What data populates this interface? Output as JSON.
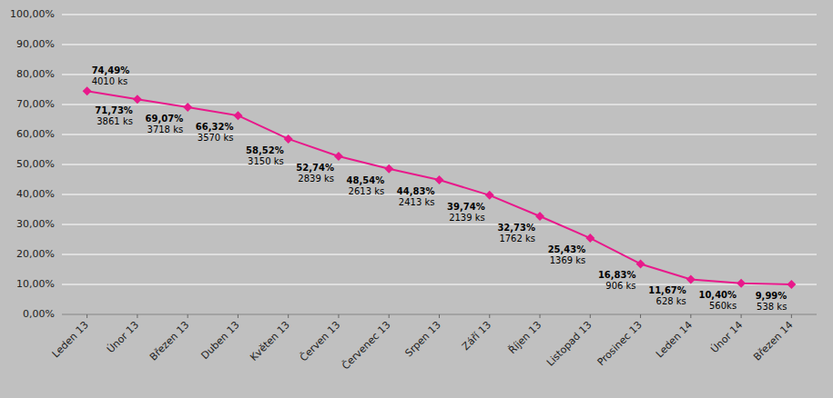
{
  "chart_data": {
    "type": "line",
    "categories": [
      "Leden 13",
      "Únor 13",
      "Březen 13",
      "Duben 13",
      "Květen 13",
      "Červen 13",
      "Červenec 13",
      "Srpen 13",
      "Září 13",
      "Říjen 13",
      "Listopad 13",
      "Prosinec 13",
      "Leden 14",
      "Únor 14",
      "Březen 14"
    ],
    "values": [
      74.49,
      71.73,
      69.07,
      66.32,
      58.52,
      52.74,
      48.54,
      44.83,
      39.74,
      32.73,
      25.43,
      16.83,
      11.67,
      10.4,
      9.99
    ],
    "value_labels": [
      "74,49%",
      "71,73%",
      "69,07%",
      "66,32%",
      "58,52%",
      "52,74%",
      "48,54%",
      "44,83%",
      "39,74%",
      "32,73%",
      "25,43%",
      "16,83%",
      "11,67%",
      "10,40%",
      "9,99%"
    ],
    "count_labels": [
      "4010 ks",
      "3861 ks",
      "3718 ks",
      "3570 ks",
      "3150 ks",
      "2839 ks",
      "2613 ks",
      "2413 ks",
      "2139 ks",
      "1762 ks",
      "1369 ks",
      "906 ks",
      "628 ks",
      "560ks",
      "538 ks"
    ],
    "color": "#E8198B",
    "marker": "diamond",
    "ylim": [
      0,
      100
    ],
    "yticks": [
      {
        "value": 0,
        "label": "0,00%"
      },
      {
        "value": 10,
        "label": "10,00%"
      },
      {
        "value": 20,
        "label": "20,00%"
      },
      {
        "value": 30,
        "label": "30,00%"
      },
      {
        "value": 40,
        "label": "40,00%"
      },
      {
        "value": 50,
        "label": "50,00%"
      },
      {
        "value": 60,
        "label": "60,00%"
      },
      {
        "value": 70,
        "label": "70,00%"
      },
      {
        "value": 80,
        "label": "80,00%"
      },
      {
        "value": 90,
        "label": "90,00%"
      },
      {
        "value": 100,
        "label": "100,00%"
      }
    ],
    "grid": true,
    "data_labels": true
  }
}
